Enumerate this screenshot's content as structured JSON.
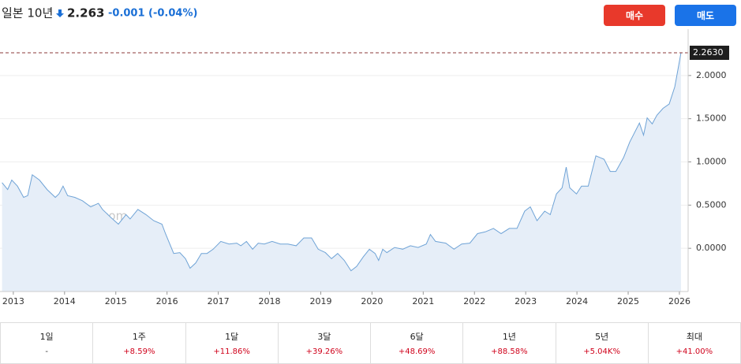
{
  "header": {
    "title": "일본 10년",
    "price": "2.263",
    "change": "-0.001 (-0.04%)"
  },
  "buttons": [
    "매수",
    "매도"
  ],
  "chart_data": {
    "type": "area",
    "watermark": [
      "Investing",
      ".com"
    ],
    "x": [
      2012.78,
      2012.89,
      2012.97,
      2013.08,
      2013.2,
      2013.28,
      2013.37,
      2013.51,
      2013.66,
      2013.82,
      2013.89,
      2013.97,
      2014.06,
      2014.2,
      2014.35,
      2014.51,
      2014.66,
      2014.74,
      2014.9,
      2015.05,
      2015.2,
      2015.28,
      2015.43,
      2015.59,
      2015.74,
      2015.9,
      2015.97,
      2016.13,
      2016.25,
      2016.36,
      2016.45,
      2016.56,
      2016.67,
      2016.78,
      2016.9,
      2017.05,
      2017.21,
      2017.36,
      2017.44,
      2017.55,
      2017.67,
      2017.78,
      2017.9,
      2018.05,
      2018.21,
      2018.36,
      2018.52,
      2018.67,
      2018.82,
      2018.95,
      2019.09,
      2019.21,
      2019.33,
      2019.46,
      2019.59,
      2019.7,
      2019.83,
      2019.95,
      2020.06,
      2020.13,
      2020.21,
      2020.29,
      2020.44,
      2020.6,
      2020.75,
      2020.9,
      2021.06,
      2021.14,
      2021.24,
      2021.44,
      2021.6,
      2021.75,
      2021.91,
      2022.06,
      2022.21,
      2022.37,
      2022.52,
      2022.68,
      2022.83,
      2022.98,
      2023.09,
      2023.22,
      2023.37,
      2023.48,
      2023.6,
      2023.71,
      2023.79,
      2023.86,
      2023.99,
      2024.09,
      2024.22,
      2024.37,
      2024.53,
      2024.65,
      2024.76,
      2024.91,
      2025.03,
      2025.22,
      2025.3,
      2025.37,
      2025.47,
      2025.56,
      2025.68,
      2025.8,
      2025.91,
      2025.99,
      2026.03
    ],
    "series": [
      {
        "name": "일본 10년",
        "color": "#6fa3d6",
        "values": [
          0.76,
          0.68,
          0.79,
          0.72,
          0.59,
          0.61,
          0.85,
          0.79,
          0.68,
          0.59,
          0.63,
          0.72,
          0.61,
          0.59,
          0.55,
          0.48,
          0.52,
          0.45,
          0.36,
          0.28,
          0.39,
          0.34,
          0.45,
          0.39,
          0.32,
          0.28,
          0.17,
          -0.06,
          -0.05,
          -0.12,
          -0.23,
          -0.17,
          -0.06,
          -0.06,
          -0.01,
          0.08,
          0.05,
          0.06,
          0.03,
          0.08,
          -0.01,
          0.06,
          0.05,
          0.08,
          0.05,
          0.05,
          0.03,
          0.12,
          0.12,
          -0.01,
          -0.05,
          -0.12,
          -0.06,
          -0.14,
          -0.26,
          -0.21,
          -0.1,
          -0.01,
          -0.06,
          -0.14,
          -0.01,
          -0.05,
          0.01,
          -0.01,
          0.03,
          0.01,
          0.05,
          0.16,
          0.08,
          0.06,
          -0.01,
          0.05,
          0.06,
          0.17,
          0.19,
          0.23,
          0.17,
          0.23,
          0.23,
          0.43,
          0.48,
          0.32,
          0.43,
          0.39,
          0.63,
          0.7,
          0.94,
          0.7,
          0.63,
          0.72,
          0.72,
          1.07,
          1.03,
          0.89,
          0.89,
          1.05,
          1.23,
          1.45,
          1.31,
          1.51,
          1.44,
          1.54,
          1.62,
          1.67,
          1.87,
          2.13,
          2.263
        ]
      }
    ],
    "current_price": {
      "value": 2.263,
      "label": "2.2630"
    },
    "xlim": [
      2012.74,
      2026.17
    ],
    "xticks": [
      2013,
      2014,
      2015,
      2016,
      2017,
      2018,
      2019,
      2020,
      2021,
      2022,
      2023,
      2024,
      2025,
      2026
    ],
    "ylim": [
      -0.5,
      2.5
    ],
    "yticks": [
      {
        "value": 0,
        "label": "0.0000"
      },
      {
        "value": 0.5,
        "label": "0.5000"
      },
      {
        "value": 1,
        "label": "1.0000"
      },
      {
        "value": 1.5,
        "label": "1.5000"
      },
      {
        "value": 2,
        "label": "2.0000"
      }
    ],
    "grid": true
  },
  "performance": [
    {
      "period": "1일",
      "change": "-"
    },
    {
      "period": "1주",
      "change": "+8.59%"
    },
    {
      "period": "1달",
      "change": "+11.86%"
    },
    {
      "period": "3달",
      "change": "+39.26%"
    },
    {
      "period": "6달",
      "change": "+48.69%"
    },
    {
      "period": "1년",
      "change": "+88.58%"
    },
    {
      "period": "5년",
      "change": "+5.04K%"
    },
    {
      "period": "최대",
      "change": "+41.00%"
    }
  ]
}
